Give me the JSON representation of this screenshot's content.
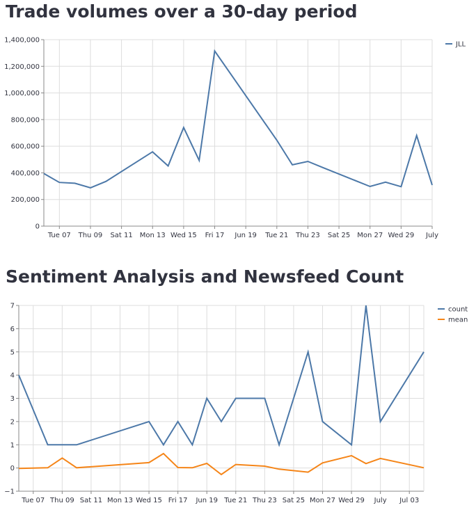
{
  "charts": [
    {
      "title": "Trade volumes over a 30-day period"
    },
    {
      "title": "Sentiment Analysis and Newsfeed Count"
    }
  ],
  "chart_data": [
    {
      "type": "line",
      "title": "Trade volumes over a 30-day period",
      "xlabel": "",
      "ylabel": "",
      "x": [
        "2022-06-06",
        "2022-06-07",
        "2022-06-08",
        "2022-06-09",
        "2022-06-10",
        "2022-06-13",
        "2022-06-14",
        "2022-06-15",
        "2022-06-16",
        "2022-06-17",
        "2022-06-21",
        "2022-06-22",
        "2022-06-23",
        "2022-06-24",
        "2022-06-27",
        "2022-06-28",
        "2022-06-29",
        "2022-06-30",
        "2022-07-01"
      ],
      "series": [
        {
          "name": "JLL",
          "color": "#4c78a8",
          "values": [
            395000,
            328000,
            322000,
            288000,
            336000,
            558000,
            452000,
            740000,
            493000,
            1315000,
            645000,
            460000,
            486000,
            438000,
            298000,
            330000,
            296000,
            680000,
            308000
          ]
        }
      ],
      "ylim": [
        0,
        1400000
      ],
      "y_ticks": [
        0,
        200000,
        400000,
        600000,
        800000,
        1000000,
        1200000,
        1400000
      ],
      "y_tick_labels": [
        "0",
        "200,000",
        "400,000",
        "600,000",
        "800,000",
        "1,000,000",
        "1,200,000",
        "1,400,000"
      ],
      "x_ticks": [
        "2022-06-07",
        "2022-06-09",
        "2022-06-11",
        "2022-06-13",
        "2022-06-15",
        "2022-06-17",
        "2022-06-19",
        "2022-06-21",
        "2022-06-23",
        "2022-06-25",
        "2022-06-27",
        "2022-06-29",
        "2022-07-01"
      ],
      "x_tick_labels": [
        "Tue 07",
        "Thu 09",
        "Sat 11",
        "Mon 13",
        "Wed 15",
        "Fri 17",
        "Jun 19",
        "Tue 21",
        "Thu 23",
        "Sat 25",
        "Mon 27",
        "Wed 29",
        "July"
      ],
      "xlim": [
        "2022-06-06",
        "2022-07-01"
      ],
      "grid": true,
      "legend": "top-right"
    },
    {
      "type": "line",
      "title": "Sentiment Analysis and Newsfeed Count",
      "xlabel": "",
      "ylabel": "",
      "x": [
        "2022-06-06",
        "2022-06-08",
        "2022-06-09",
        "2022-06-10",
        "2022-06-15",
        "2022-06-16",
        "2022-06-17",
        "2022-06-18",
        "2022-06-19",
        "2022-06-20",
        "2022-06-21",
        "2022-06-23",
        "2022-06-24",
        "2022-06-26",
        "2022-06-27",
        "2022-06-29",
        "2022-06-30",
        "2022-07-01",
        "2022-07-04"
      ],
      "series": [
        {
          "name": "count",
          "color": "#4c78a8",
          "values": [
            4,
            1,
            1,
            1,
            2,
            1,
            2,
            1,
            3,
            2,
            3,
            3,
            1,
            5,
            2,
            1,
            7,
            2,
            5
          ]
        },
        {
          "name": "mean",
          "color": "#f58518",
          "values": [
            -0.02,
            0.01,
            0.43,
            0.01,
            0.23,
            0.62,
            0.02,
            0.01,
            0.2,
            -0.28,
            0.15,
            0.08,
            -0.05,
            -0.18,
            0.22,
            0.53,
            0.19,
            0.41,
            0.01
          ]
        }
      ],
      "ylim": [
        -1,
        7
      ],
      "y_ticks": [
        -1,
        0,
        1,
        2,
        3,
        4,
        5,
        6,
        7
      ],
      "y_tick_labels": [
        "−1",
        "0",
        "1",
        "2",
        "3",
        "4",
        "5",
        "6",
        "7"
      ],
      "x_ticks": [
        "2022-06-07",
        "2022-06-09",
        "2022-06-11",
        "2022-06-13",
        "2022-06-15",
        "2022-06-17",
        "2022-06-19",
        "2022-06-21",
        "2022-06-23",
        "2022-06-25",
        "2022-06-27",
        "2022-06-29",
        "2022-07-01",
        "2022-07-03"
      ],
      "x_tick_labels": [
        "Tue 07",
        "Thu 09",
        "Sat 11",
        "Mon 13",
        "Wed 15",
        "Fri 17",
        "Jun 19",
        "Tue 21",
        "Thu 23",
        "Sat 25",
        "Mon 27",
        "Wed 29",
        "July",
        "Jul 03"
      ],
      "xlim": [
        "2022-06-06",
        "2022-07-04"
      ],
      "grid": true,
      "legend": "top-right"
    }
  ]
}
